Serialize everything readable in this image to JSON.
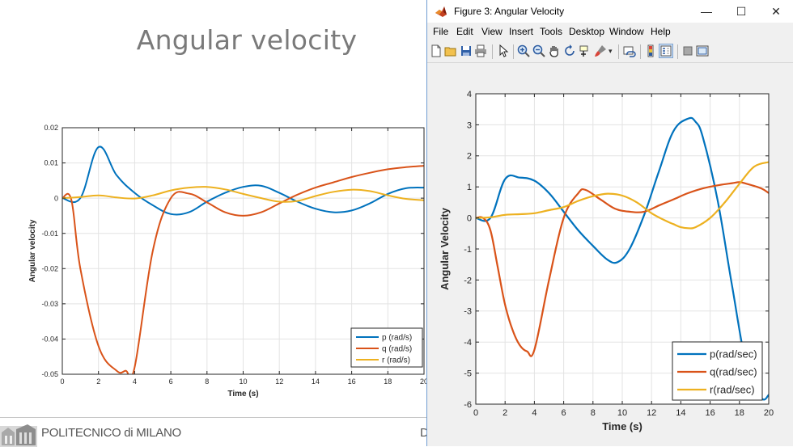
{
  "slide": {
    "title": "Angular velocity",
    "footer_text": "POLITECNICO di MILANO",
    "footer_text_right": "D"
  },
  "figure_window": {
    "title": "Figure 3: Angular Velocity",
    "minimize_glyph": "—",
    "maximize_glyph": "☐",
    "close_glyph": "✕",
    "menu": [
      "File",
      "Edit",
      "View",
      "Insert",
      "Tools",
      "Desktop",
      "Window",
      "Help"
    ],
    "toolbar_icons": [
      "new-figure-icon",
      "open-file-icon",
      "save-icon",
      "print-icon",
      "pointer-icon",
      "zoom-in-icon",
      "zoom-out-icon",
      "pan-icon",
      "rotate-icon",
      "data-cursor-icon",
      "brush-icon",
      "link-icon",
      "colorbar-icon",
      "legend-icon",
      "hide-plot-tools-icon",
      "show-plot-tools-icon"
    ]
  },
  "chart_data": [
    {
      "type": "line",
      "title": "",
      "xlabel": "Time (s)",
      "ylabel": "Angular velocity",
      "xlim": [
        0,
        20
      ],
      "ylim": [
        -0.05,
        0.02
      ],
      "xticks": [
        0,
        2,
        4,
        6,
        8,
        10,
        12,
        14,
        16,
        18,
        20
      ],
      "yticks": [
        0.02,
        0.01,
        0,
        -0.01,
        -0.02,
        -0.03,
        -0.04,
        -0.05
      ],
      "grid": true,
      "legend_position": "bottom-right",
      "series": [
        {
          "name": "p (rad/s)",
          "color": "#0072bd",
          "x": [
            0,
            1,
            2,
            3,
            4,
            5,
            6,
            7,
            8,
            9,
            10,
            11,
            12,
            13,
            14,
            15,
            16,
            17,
            18,
            19,
            20
          ],
          "y": [
            0,
            0,
            0.0145,
            0.0065,
            0.0015,
            -0.002,
            -0.0045,
            -0.004,
            -0.001,
            0.0015,
            0.0032,
            0.0035,
            0.0015,
            -0.001,
            -0.003,
            -0.004,
            -0.0035,
            -0.0015,
            0.0012,
            0.0028,
            0.003
          ]
        },
        {
          "name": "q (rad/s)",
          "color": "#d95319",
          "x": [
            0,
            0.5,
            1,
            2,
            3,
            3.5,
            4,
            5,
            6,
            7,
            8,
            9,
            10,
            11,
            12,
            13,
            14,
            15,
            16,
            17,
            18,
            19,
            20
          ],
          "y": [
            0,
            -0.0005,
            -0.02,
            -0.042,
            -0.049,
            -0.049,
            -0.048,
            -0.015,
            0.0,
            0.0013,
            -0.0012,
            -0.004,
            -0.005,
            -0.004,
            -0.0015,
            0.001,
            0.003,
            0.0045,
            0.006,
            0.0072,
            0.0082,
            0.0088,
            0.0092
          ]
        },
        {
          "name": "r (rad/s)",
          "color": "#edb120",
          "x": [
            0,
            1,
            2,
            3,
            4,
            5,
            6,
            7,
            8,
            9,
            10,
            11,
            12,
            13,
            14,
            15,
            16,
            17,
            18,
            19,
            20
          ],
          "y": [
            0,
            0.0003,
            0.0008,
            0.0002,
            -0.0001,
            0.0008,
            0.0022,
            0.003,
            0.0032,
            0.0025,
            0.0012,
            0.0,
            -0.001,
            -0.0008,
            0.0006,
            0.0018,
            0.0024,
            0.002,
            0.0008,
            -0.0002,
            -0.0006
          ]
        }
      ]
    },
    {
      "type": "line",
      "title": "",
      "xlabel": "Time (s)",
      "ylabel": "Angular Velocity",
      "xlim": [
        0,
        20
      ],
      "ylim": [
        -6,
        4
      ],
      "xticks": [
        0,
        2,
        4,
        6,
        8,
        10,
        12,
        14,
        16,
        18,
        20
      ],
      "yticks": [
        4,
        3,
        2,
        1,
        0,
        -1,
        -2,
        -3,
        -4,
        -5,
        -6
      ],
      "grid": true,
      "legend_position": "bottom-right",
      "series": [
        {
          "name": "p(rad/sec)",
          "color": "#0072bd",
          "x": [
            0,
            1,
            2,
            3,
            4,
            5,
            6,
            7,
            8,
            9,
            9.7,
            10.5,
            11.5,
            12.5,
            13.5,
            14.5,
            15,
            15.5,
            16.5,
            17.5,
            18.5,
            19.5,
            20
          ],
          "y": [
            0,
            0,
            1.25,
            1.3,
            1.2,
            0.8,
            0.2,
            -0.4,
            -0.9,
            -1.35,
            -1.42,
            -1.0,
            0.1,
            1.5,
            2.8,
            3.2,
            3.1,
            2.6,
            0.6,
            -2.2,
            -4.8,
            -5.8,
            -5.7
          ]
        },
        {
          "name": "q(rad/sec)",
          "color": "#d95319",
          "x": [
            0,
            0.5,
            1,
            1.5,
            2,
            2.5,
            3,
            3.5,
            4,
            5,
            6,
            7,
            7.5,
            8.5,
            9.5,
            10.5,
            11.5,
            12.5,
            13.5,
            14.5,
            15.5,
            16.5,
            17.5,
            18,
            18.5,
            19.5,
            20
          ],
          "y": [
            0,
            0,
            -0.4,
            -1.6,
            -2.8,
            -3.6,
            -4.1,
            -4.3,
            -4.25,
            -2.0,
            0.0,
            0.8,
            0.9,
            0.6,
            0.3,
            0.2,
            0.2,
            0.4,
            0.6,
            0.8,
            0.95,
            1.05,
            1.12,
            1.15,
            1.1,
            0.95,
            0.8
          ]
        },
        {
          "name": "r(rad/sec)",
          "color": "#edb120",
          "x": [
            0,
            1,
            2,
            3,
            4,
            5,
            6,
            7,
            8,
            9,
            10,
            11,
            12,
            13,
            13.5,
            14,
            14.5,
            15,
            16,
            17,
            18,
            19,
            20
          ],
          "y": [
            0,
            0.02,
            0.1,
            0.12,
            0.15,
            0.25,
            0.35,
            0.55,
            0.7,
            0.78,
            0.72,
            0.5,
            0.15,
            -0.1,
            -0.2,
            -0.3,
            -0.33,
            -0.3,
            0.0,
            0.5,
            1.1,
            1.65,
            1.8
          ]
        }
      ]
    }
  ]
}
